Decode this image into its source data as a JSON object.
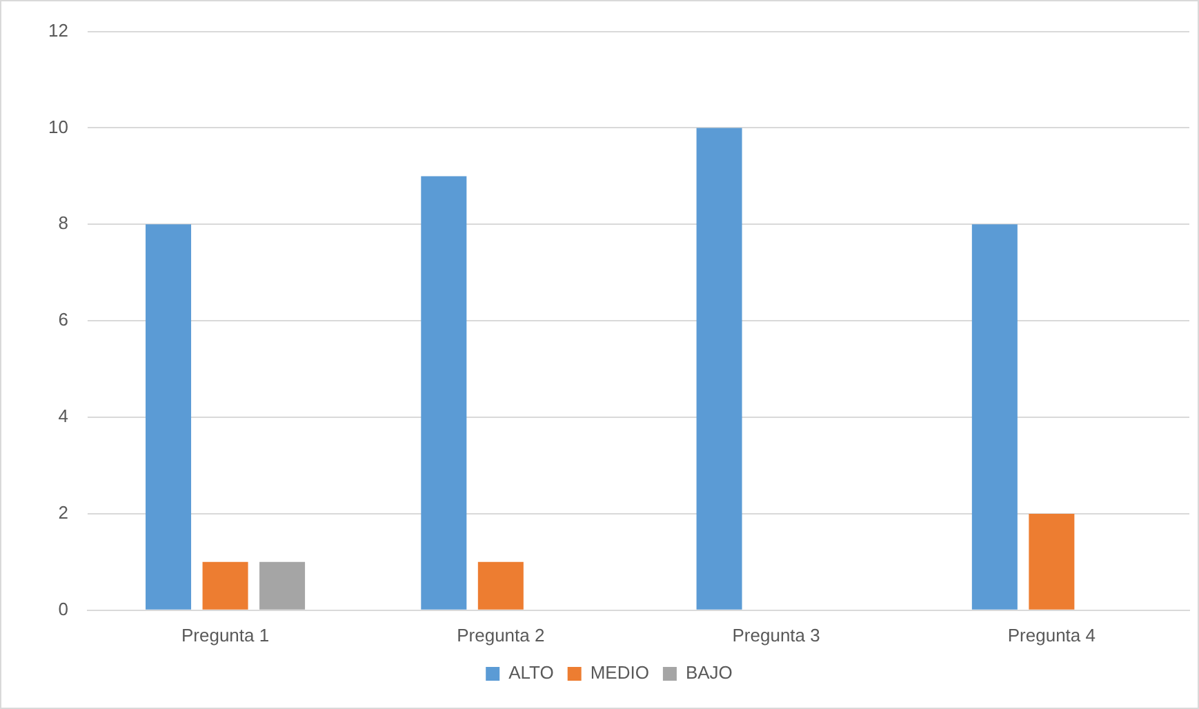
{
  "chart_data": {
    "type": "bar",
    "categories": [
      "Pregunta 1",
      "Pregunta 2",
      "Pregunta 3",
      "Pregunta 4"
    ],
    "series": [
      {
        "name": "ALTO",
        "color": "#5b9bd5",
        "values": [
          8,
          9,
          10,
          8
        ]
      },
      {
        "name": "MEDIO",
        "color": "#ed7d31",
        "values": [
          1,
          1,
          0,
          2
        ]
      },
      {
        "name": "BAJO",
        "color": "#a5a5a5",
        "values": [
          1,
          0,
          0,
          0
        ]
      }
    ],
    "ylim": [
      0,
      12
    ],
    "yticks": [
      0,
      2,
      4,
      6,
      8,
      10,
      12
    ],
    "grid": "y",
    "legend": "bottom"
  }
}
